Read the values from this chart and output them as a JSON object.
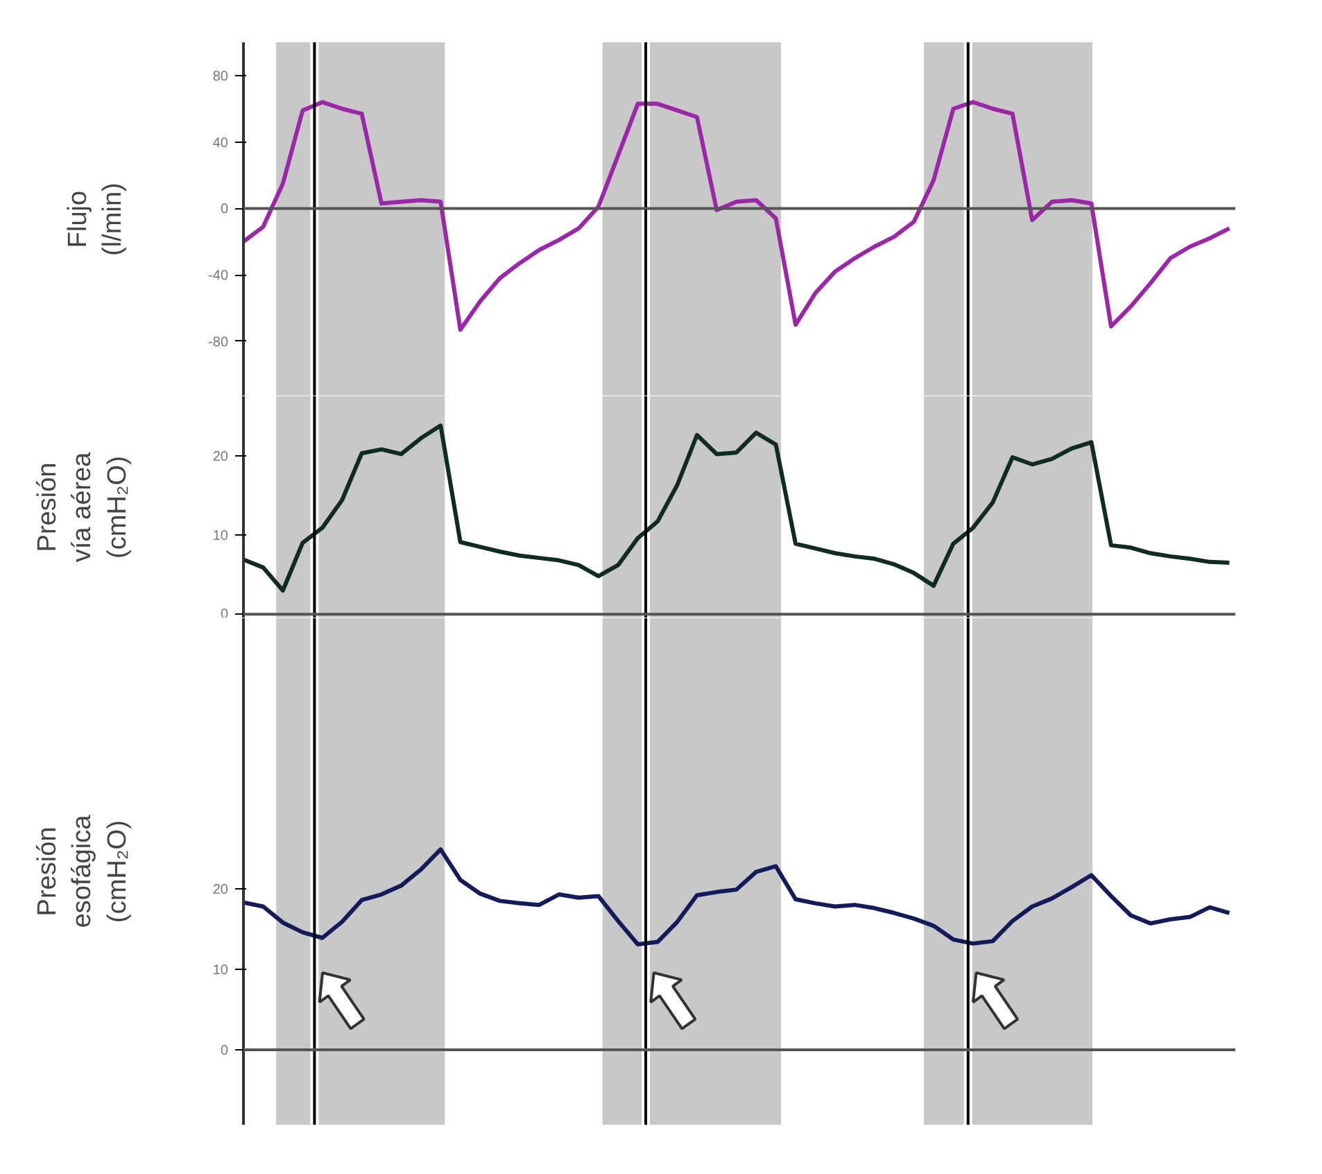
{
  "chart_data": [
    {
      "type": "line",
      "ylabel": "Flujo\n(l/min)",
      "categories": [
        null,
        null,
        null,
        null,
        null,
        null,
        null,
        null,
        null,
        null,
        null,
        null,
        null,
        null,
        null,
        null,
        null,
        null,
        null,
        null,
        null,
        null,
        null,
        null,
        null,
        null,
        null,
        null,
        null,
        null,
        null,
        null,
        null,
        null,
        null,
        null,
        null,
        null,
        null,
        null,
        null,
        null,
        null,
        null,
        null,
        null,
        null,
        null,
        null,
        null,
        null
      ],
      "ylim": [
        -113,
        100
      ],
      "yticks": [
        -80,
        -40,
        0,
        40,
        80
      ],
      "grid": false,
      "ref_lines": [
        {
          "axis": "y",
          "value": 0,
          "color": "#555555"
        }
      ],
      "series": [
        {
          "color": "#9b27a8",
          "values": [
            -20,
            -11,
            15,
            59,
            64,
            60,
            57,
            3,
            4,
            5,
            4,
            -73,
            -56,
            -42,
            -33,
            -25,
            -19,
            -12,
            1,
            32,
            63,
            63,
            59,
            55,
            -1,
            4,
            5,
            -6,
            -70,
            -51,
            -38,
            -30,
            -23,
            -17,
            -8,
            17,
            60,
            64,
            60,
            57,
            -7,
            4,
            5,
            3,
            -71,
            -59,
            -45,
            -30,
            -23,
            -18,
            -12
          ]
        }
      ]
    },
    {
      "type": "line",
      "ylabel": "Presión\nvía aérea\n(cmH₂O)",
      "categories": [
        null,
        null,
        null,
        null,
        null,
        null,
        null,
        null,
        null,
        null,
        null,
        null,
        null,
        null,
        null,
        null,
        null,
        null,
        null,
        null,
        null,
        null,
        null,
        null,
        null,
        null,
        null,
        null,
        null,
        null,
        null,
        null,
        null,
        null,
        null,
        null,
        null,
        null,
        null,
        null,
        null,
        null,
        null,
        null,
        null,
        null,
        null,
        null,
        null,
        null,
        null
      ],
      "ylim": [
        -0.5,
        27.5
      ],
      "yticks": [
        0,
        10,
        20
      ],
      "grid": false,
      "ref_lines": [
        {
          "axis": "y",
          "value": 0,
          "color": "#555555"
        }
      ],
      "series": [
        {
          "color": "#0f2b24",
          "values": [
            6.9,
            5.9,
            3.0,
            9.0,
            10.9,
            14.4,
            20.3,
            20.8,
            20.2,
            22.2,
            23.8,
            9.1,
            8.5,
            7.9,
            7.4,
            7.1,
            6.8,
            6.2,
            4.8,
            6.2,
            9.6,
            11.7,
            16.3,
            22.6,
            20.2,
            20.4,
            22.9,
            21.4,
            8.9,
            8.3,
            7.7,
            7.3,
            7.0,
            6.3,
            5.2,
            3.6,
            8.9,
            10.9,
            14.1,
            19.8,
            18.9,
            19.6,
            20.9,
            21.7,
            8.7,
            8.4,
            7.7,
            7.3,
            7.0,
            6.6,
            6.5
          ]
        }
      ]
    },
    {
      "type": "line",
      "ylabel": "Presión\nesofágica\n(cmH₂O)",
      "categories": [
        null,
        null,
        null,
        null,
        null,
        null,
        null,
        null,
        null,
        null,
        null,
        null,
        null,
        null,
        null,
        null,
        null,
        null,
        null,
        null,
        null,
        null,
        null,
        null,
        null,
        null,
        null,
        null,
        null,
        null,
        null,
        null,
        null,
        null,
        null,
        null,
        null,
        null,
        null,
        null,
        null,
        null,
        null,
        null,
        null,
        null,
        null,
        null,
        null,
        null,
        null
      ],
      "ylim": [
        -9.3,
        53.6
      ],
      "yticks": [
        0,
        10,
        20
      ],
      "grid": false,
      "ref_lines": [
        {
          "axis": "y",
          "value": 0,
          "color": "#555555"
        }
      ],
      "series": [
        {
          "color": "#141a5a",
          "values": [
            18.3,
            17.8,
            15.8,
            14.6,
            13.9,
            15.9,
            18.6,
            19.3,
            20.4,
            22.4,
            24.9,
            21.1,
            19.4,
            18.5,
            18.2,
            18.0,
            19.3,
            18.9,
            19.1,
            16.0,
            13.1,
            13.4,
            15.9,
            19.2,
            19.6,
            19.9,
            22.1,
            22.8,
            18.7,
            18.2,
            17.8,
            18.0,
            17.6,
            17.0,
            16.3,
            15.4,
            13.7,
            13.2,
            13.5,
            16.0,
            17.8,
            18.8,
            20.2,
            21.7,
            19.1,
            16.7,
            15.7,
            16.2,
            16.5,
            17.7,
            17.0
          ]
        }
      ]
    }
  ]
}
